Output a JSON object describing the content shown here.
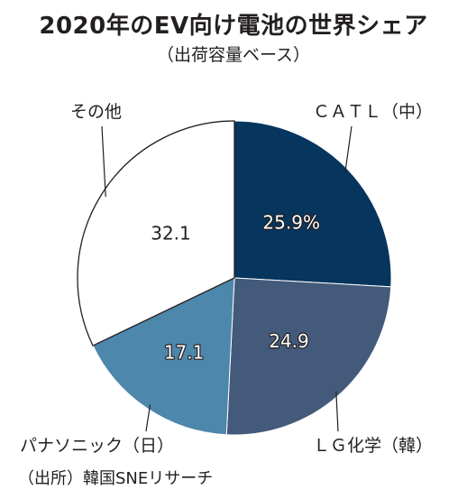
{
  "header": {
    "title": "2020年のEV向け電池の世界シェア",
    "subtitle": "（出荷容量ベース）"
  },
  "colors": {
    "catl": "#06355e",
    "lg": "#435a7a",
    "panasonic": "#4d87ab",
    "other": "#ffffff",
    "outline": "#231f20"
  },
  "chart_data": {
    "type": "pie",
    "title": "2020年のEV向け電池の世界シェア",
    "subtitle": "（出荷容量ベース）",
    "unit": "%",
    "slices": [
      {
        "label": "ＣＡＴＬ（中）",
        "value": 25.9,
        "value_label": "25.9%",
        "color": "#06355e"
      },
      {
        "label": "ＬＧ化学（韓）",
        "value": 24.9,
        "value_label": "24.9",
        "color": "#435a7a"
      },
      {
        "label": "パナソニック（日）",
        "value": 17.1,
        "value_label": "17.1",
        "color": "#4d87ab"
      },
      {
        "label": "その他",
        "value": 32.1,
        "value_label": "32.1",
        "color": "#ffffff"
      }
    ]
  },
  "footer": {
    "source": "（出所）韓国SNEリサーチ"
  }
}
